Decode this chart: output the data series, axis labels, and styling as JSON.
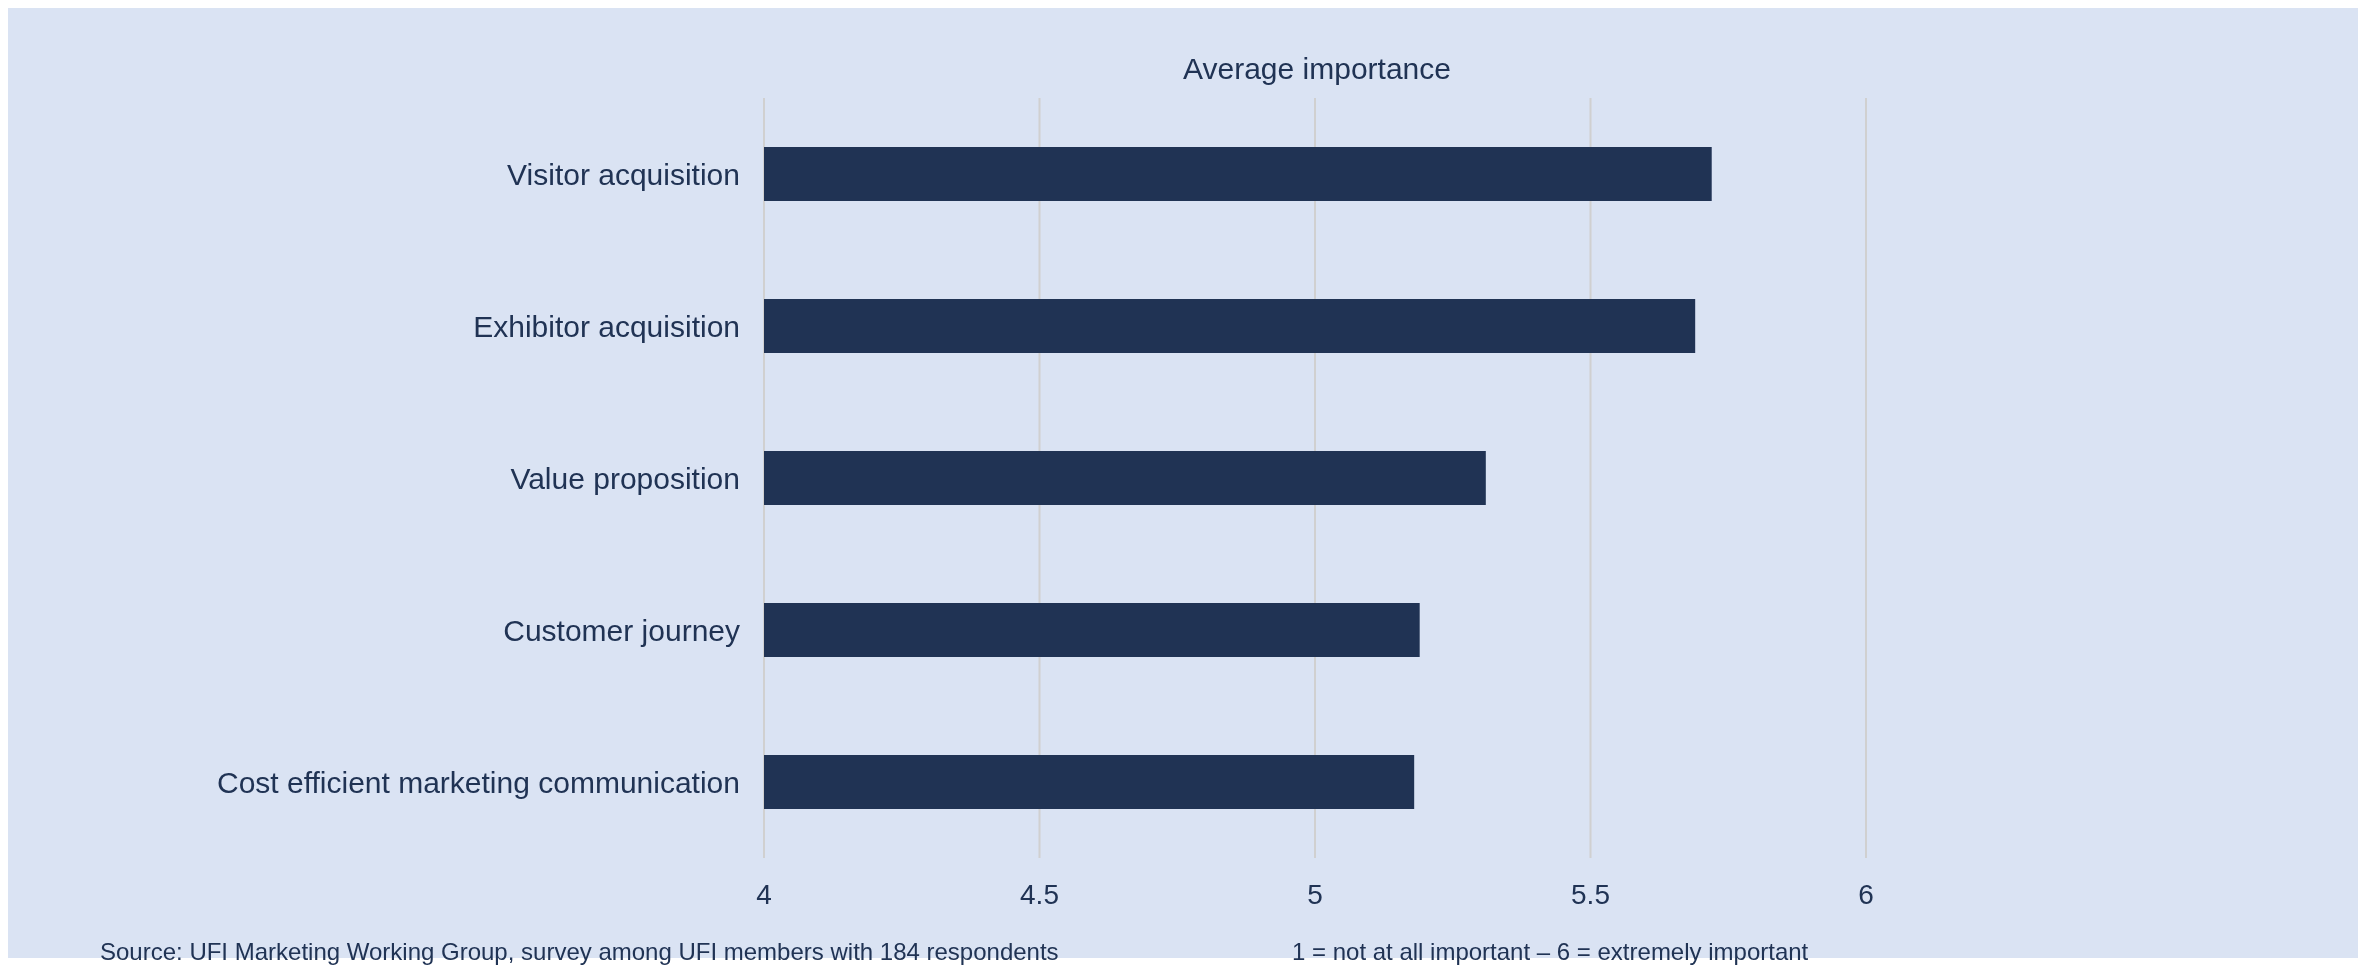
{
  "chart_data": {
    "type": "bar",
    "orientation": "horizontal",
    "title": "Average importance",
    "categories": [
      "Visitor acquisition",
      "Exhibitor acquisition",
      "Value proposition",
      "Customer journey",
      "Cost efficient marketing communication"
    ],
    "values": [
      5.72,
      5.69,
      5.31,
      5.19,
      5.18
    ],
    "color": "#203354",
    "xlim": [
      4,
      6
    ],
    "xticks": [
      4,
      4.5,
      5,
      5.5,
      6
    ],
    "grid": "x",
    "annotations": [
      "Source: UFI Marketing Working Group, survey among UFI members with 184 respondents",
      "1 = not at all important – 6 = extremely important"
    ]
  }
}
